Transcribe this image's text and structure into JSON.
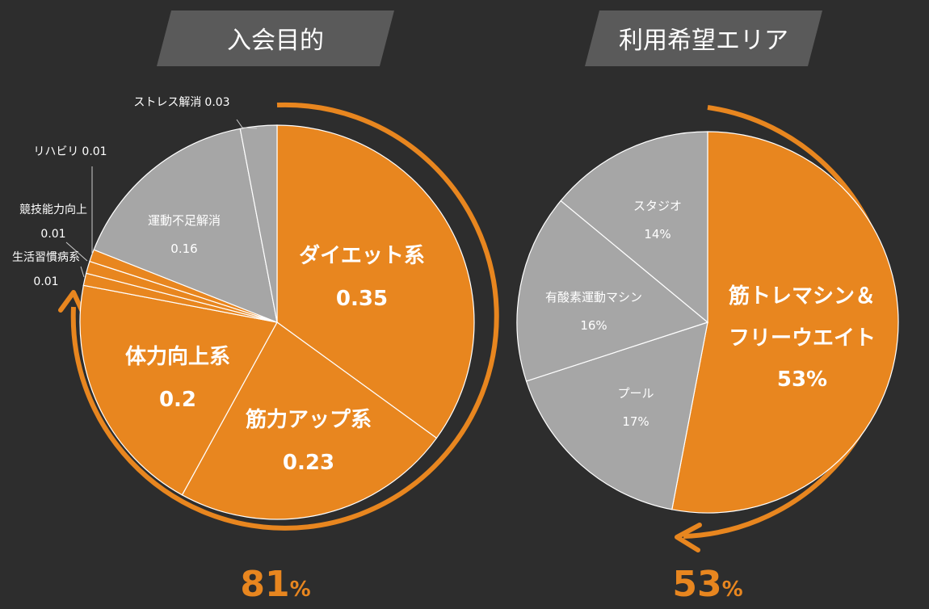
{
  "colors": {
    "accent": "#e8861f",
    "gray": "#a6a6a6",
    "background": "#2d2d2d",
    "banner": "#5a5a5a"
  },
  "chart_data": [
    {
      "type": "pie",
      "title": "入会目的",
      "total_label": "81",
      "total_unit": "%",
      "slices": [
        {
          "name": "ダイエット系",
          "value": 0.35,
          "value_label": "0.35",
          "color": "#e8861f"
        },
        {
          "name": "筋力アップ系",
          "value": 0.23,
          "value_label": "0.23",
          "color": "#e8861f"
        },
        {
          "name": "体力向上系",
          "value": 0.2,
          "value_label": "0.2",
          "color": "#e8861f"
        },
        {
          "name": "生活習慣病系",
          "value": 0.01,
          "value_label": "0.01",
          "color": "#e8861f"
        },
        {
          "name": "競技能力向上",
          "value": 0.01,
          "value_label": "0.01",
          "color": "#e8861f"
        },
        {
          "name": "リハビリ",
          "value": 0.01,
          "value_label": "0.01",
          "color": "#e8861f"
        },
        {
          "name": "運動不足解消",
          "value": 0.16,
          "value_label": "0.16",
          "color": "#a6a6a6"
        },
        {
          "name": "ストレス解消",
          "value": 0.03,
          "value_label": "0.03",
          "color": "#a6a6a6"
        }
      ]
    },
    {
      "type": "pie",
      "title": "利用希望エリア",
      "total_label": "53",
      "total_unit": "%",
      "slices": [
        {
          "name": "筋トレマシン＆フリーウエイト",
          "name_lines": [
            "筋トレマシン＆",
            "フリーウエイト"
          ],
          "value": 0.53,
          "value_label": "53%",
          "color": "#e8861f"
        },
        {
          "name": "プール",
          "value": 0.17,
          "value_label": "17%",
          "color": "#a6a6a6"
        },
        {
          "name": "有酸素運動マシン",
          "value": 0.16,
          "value_label": "16%",
          "color": "#a6a6a6"
        },
        {
          "name": "スタジオ",
          "value": 0.14,
          "value_label": "14%",
          "color": "#a6a6a6"
        }
      ]
    }
  ]
}
